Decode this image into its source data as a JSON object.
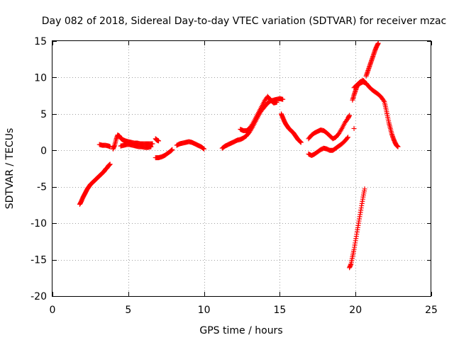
{
  "chart_data": {
    "type": "scatter",
    "title": "Day 082 of 2018, Sidereal Day-to-day VTEC variation (SDTVAR) for receiver mzac",
    "xlabel": "GPS time / hours",
    "ylabel": "SDTVAR / TECUs",
    "xlim": [
      0,
      25
    ],
    "ylim": [
      -20,
      15
    ],
    "xticks": [
      0,
      5,
      10,
      15,
      20,
      25
    ],
    "yticks": [
      -20,
      -15,
      -10,
      -5,
      0,
      5,
      10,
      15
    ],
    "grid": true,
    "legend": "none",
    "marker": "plus",
    "color": "#ff0000",
    "series": [
      {
        "name": "arc-1",
        "points": [
          [
            1.8,
            -7.4
          ],
          [
            1.9,
            -7.0
          ],
          [
            2.0,
            -6.5
          ],
          [
            2.1,
            -6.1
          ],
          [
            2.2,
            -5.7
          ],
          [
            2.3,
            -5.3
          ],
          [
            2.4,
            -5.0
          ],
          [
            2.5,
            -4.7
          ],
          [
            2.6,
            -4.5
          ],
          [
            2.7,
            -4.3
          ],
          [
            2.8,
            -4.1
          ],
          [
            2.9,
            -3.9
          ],
          [
            3.0,
            -3.7
          ],
          [
            3.1,
            -3.5
          ],
          [
            3.2,
            -3.3
          ],
          [
            3.3,
            -3.1
          ],
          [
            3.4,
            -2.9
          ],
          [
            3.5,
            -2.6
          ],
          [
            3.6,
            -2.4
          ],
          [
            3.7,
            -2.1
          ],
          [
            3.8,
            -1.9
          ]
        ]
      },
      {
        "name": "arc-2",
        "points": [
          [
            3.1,
            0.8
          ],
          [
            3.3,
            0.7
          ],
          [
            3.5,
            0.7
          ],
          [
            3.7,
            0.6
          ],
          [
            3.8,
            0.5
          ]
        ]
      },
      {
        "name": "arc-3",
        "points": [
          [
            4.0,
            0.2
          ],
          [
            4.1,
            0.7
          ],
          [
            4.2,
            1.5
          ],
          [
            4.3,
            2.1
          ],
          [
            4.4,
            2.0
          ],
          [
            4.5,
            1.7
          ],
          [
            4.6,
            1.5
          ],
          [
            4.7,
            1.4
          ],
          [
            4.8,
            1.3
          ],
          [
            5.0,
            1.2
          ],
          [
            5.2,
            1.1
          ],
          [
            5.4,
            1.0
          ],
          [
            5.6,
            1.0
          ],
          [
            5.8,
            0.9
          ],
          [
            6.0,
            0.9
          ],
          [
            6.2,
            0.9
          ],
          [
            6.4,
            0.9
          ],
          [
            6.6,
            0.9
          ]
        ]
      },
      {
        "name": "arc-4",
        "points": [
          [
            4.5,
            0.6
          ],
          [
            4.7,
            0.7
          ],
          [
            4.9,
            0.8
          ],
          [
            5.1,
            0.8
          ],
          [
            5.3,
            0.7
          ],
          [
            5.5,
            0.6
          ],
          [
            5.7,
            0.5
          ],
          [
            5.9,
            0.5
          ],
          [
            6.1,
            0.4
          ],
          [
            6.3,
            0.4
          ],
          [
            6.5,
            0.5
          ]
        ]
      },
      {
        "name": "arc-5",
        "points": [
          [
            6.8,
            1.6
          ],
          [
            6.9,
            1.4
          ],
          [
            7.0,
            1.3
          ]
        ]
      },
      {
        "name": "arc-6",
        "points": [
          [
            6.8,
            -1.0
          ],
          [
            7.0,
            -1.0
          ],
          [
            7.2,
            -0.9
          ],
          [
            7.4,
            -0.7
          ],
          [
            7.6,
            -0.4
          ],
          [
            7.8,
            -0.1
          ],
          [
            7.9,
            0.1
          ]
        ]
      },
      {
        "name": "arc-7",
        "points": [
          [
            8.2,
            0.7
          ],
          [
            8.4,
            0.9
          ],
          [
            8.6,
            1.0
          ],
          [
            8.8,
            1.1
          ],
          [
            9.0,
            1.2
          ],
          [
            9.2,
            1.1
          ],
          [
            9.4,
            0.9
          ],
          [
            9.6,
            0.7
          ],
          [
            9.8,
            0.5
          ],
          [
            10.0,
            0.2
          ]
        ]
      },
      {
        "name": "arc-8",
        "points": [
          [
            11.2,
            0.3
          ],
          [
            11.4,
            0.6
          ],
          [
            11.6,
            0.8
          ],
          [
            11.8,
            1.0
          ],
          [
            12.0,
            1.2
          ],
          [
            12.2,
            1.4
          ],
          [
            12.4,
            1.5
          ],
          [
            12.6,
            1.7
          ],
          [
            12.8,
            2.0
          ],
          [
            13.0,
            2.5
          ],
          [
            13.2,
            3.2
          ],
          [
            13.4,
            4.0
          ],
          [
            13.6,
            4.8
          ],
          [
            13.8,
            5.5
          ],
          [
            14.0,
            6.0
          ],
          [
            14.2,
            6.5
          ],
          [
            14.4,
            6.8
          ],
          [
            14.6,
            6.9
          ],
          [
            14.8,
            7.0
          ],
          [
            15.0,
            7.1
          ],
          [
            15.2,
            7.0
          ]
        ]
      },
      {
        "name": "arc-9",
        "points": [
          [
            12.4,
            2.9
          ],
          [
            12.6,
            2.7
          ],
          [
            12.8,
            2.7
          ],
          [
            13.0,
            3.0
          ],
          [
            13.2,
            3.6
          ],
          [
            13.4,
            4.4
          ],
          [
            13.6,
            5.2
          ],
          [
            13.8,
            6.0
          ],
          [
            14.0,
            6.8
          ],
          [
            14.2,
            7.4
          ],
          [
            14.4,
            6.9
          ],
          [
            14.6,
            6.5
          ],
          [
            14.8,
            6.6
          ]
        ]
      },
      {
        "name": "arc-10",
        "points": [
          [
            15.1,
            5.0
          ],
          [
            15.2,
            4.5
          ],
          [
            15.3,
            4.0
          ],
          [
            15.4,
            3.6
          ],
          [
            15.5,
            3.3
          ],
          [
            15.6,
            3.0
          ],
          [
            15.7,
            2.8
          ],
          [
            15.8,
            2.6
          ],
          [
            15.9,
            2.4
          ],
          [
            16.0,
            2.1
          ],
          [
            16.1,
            1.8
          ],
          [
            16.2,
            1.5
          ],
          [
            16.3,
            1.3
          ],
          [
            16.4,
            1.1
          ]
        ]
      },
      {
        "name": "arc-11",
        "points": [
          [
            16.9,
            1.6
          ],
          [
            17.1,
            2.1
          ],
          [
            17.3,
            2.4
          ],
          [
            17.5,
            2.6
          ],
          [
            17.7,
            2.8
          ],
          [
            17.9,
            2.7
          ],
          [
            18.1,
            2.4
          ],
          [
            18.3,
            2.0
          ],
          [
            18.5,
            1.6
          ],
          [
            18.7,
            1.8
          ],
          [
            18.9,
            2.3
          ],
          [
            19.1,
            3.0
          ],
          [
            19.3,
            3.8
          ],
          [
            19.5,
            4.4
          ],
          [
            19.6,
            4.8
          ]
        ]
      },
      {
        "name": "arc-12",
        "points": [
          [
            16.9,
            -0.5
          ],
          [
            17.1,
            -0.7
          ],
          [
            17.3,
            -0.5
          ],
          [
            17.5,
            -0.2
          ],
          [
            17.7,
            0.1
          ],
          [
            17.9,
            0.3
          ],
          [
            18.1,
            0.2
          ],
          [
            18.3,
            0.0
          ],
          [
            18.5,
            0.0
          ],
          [
            18.7,
            0.3
          ],
          [
            18.9,
            0.6
          ],
          [
            19.1,
            0.9
          ],
          [
            19.3,
            1.3
          ],
          [
            19.5,
            1.8
          ]
        ]
      },
      {
        "name": "arc-13",
        "points": [
          [
            19.9,
            3.0
          ]
        ]
      },
      {
        "name": "arc-14",
        "points": [
          [
            19.6,
            -16.1
          ],
          [
            19.7,
            -15.6
          ],
          [
            19.8,
            -14.6
          ],
          [
            19.9,
            -13.6
          ],
          [
            20.0,
            -12.4
          ],
          [
            20.1,
            -11.2
          ],
          [
            20.2,
            -10.0
          ],
          [
            20.3,
            -8.8
          ],
          [
            20.4,
            -7.6
          ],
          [
            20.5,
            -6.4
          ],
          [
            20.6,
            -5.3
          ]
        ]
      },
      {
        "name": "arc-15",
        "points": [
          [
            19.8,
            6.9
          ],
          [
            19.9,
            7.6
          ],
          [
            20.0,
            8.2
          ],
          [
            20.1,
            8.8
          ],
          [
            20.3,
            9.2
          ],
          [
            20.5,
            9.4
          ],
          [
            20.7,
            9.2
          ],
          [
            20.9,
            8.7
          ],
          [
            21.1,
            8.3
          ],
          [
            21.3,
            8.0
          ],
          [
            21.5,
            7.7
          ],
          [
            21.7,
            7.3
          ],
          [
            21.9,
            6.7
          ],
          [
            22.0,
            5.8
          ],
          [
            22.1,
            4.8
          ],
          [
            22.2,
            3.8
          ],
          [
            22.3,
            3.0
          ],
          [
            22.4,
            2.2
          ],
          [
            22.5,
            1.6
          ],
          [
            22.6,
            1.1
          ],
          [
            22.7,
            0.7
          ],
          [
            22.8,
            0.5
          ]
        ]
      },
      {
        "name": "arc-16",
        "points": [
          [
            19.9,
            8.6
          ],
          [
            20.1,
            9.0
          ],
          [
            20.3,
            9.4
          ],
          [
            20.5,
            9.6
          ],
          [
            20.6,
            9.4
          ]
        ]
      },
      {
        "name": "arc-17",
        "points": [
          [
            20.7,
            10.2
          ],
          [
            20.8,
            10.8
          ],
          [
            20.9,
            11.4
          ],
          [
            21.0,
            12.0
          ],
          [
            21.1,
            12.6
          ],
          [
            21.2,
            13.2
          ],
          [
            21.3,
            13.8
          ],
          [
            21.4,
            14.3
          ],
          [
            21.5,
            14.7
          ]
        ]
      }
    ]
  }
}
